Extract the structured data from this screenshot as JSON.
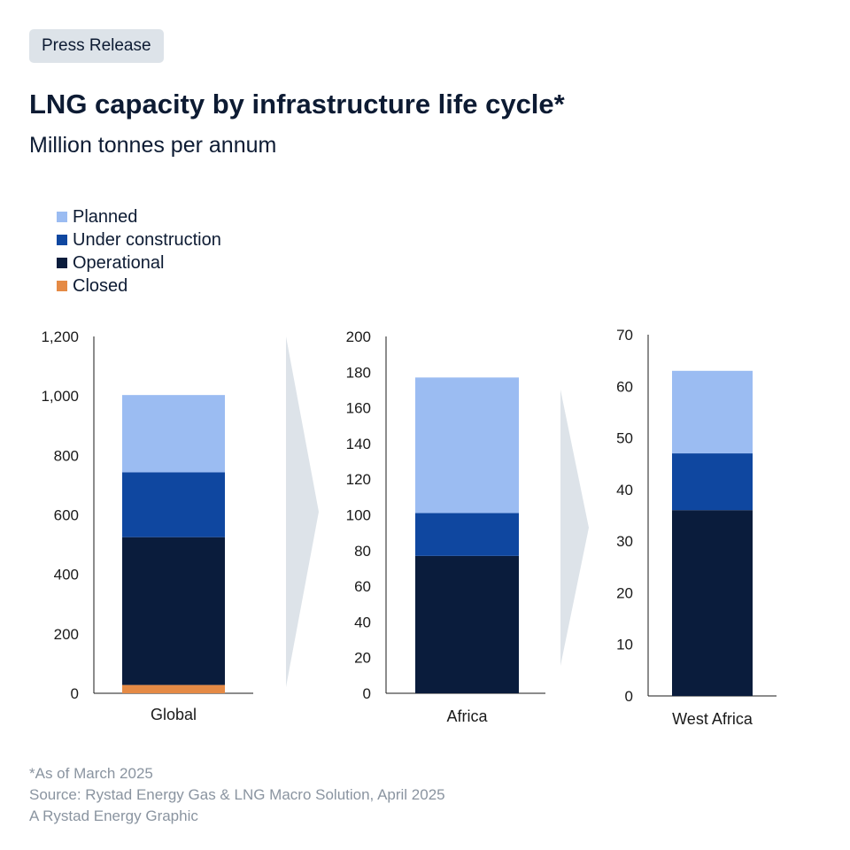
{
  "badge": "Press Release",
  "title": "LNG capacity by infrastructure life cycle*",
  "subtitle": "Million tonnes per annum",
  "legend": [
    {
      "label": "Planned",
      "color": "#9bbcf2"
    },
    {
      "label": "Under construction",
      "color": "#0f47a0"
    },
    {
      "label": "Operational",
      "color": "#0a1c3c"
    },
    {
      "label": "Closed",
      "color": "#e58a45"
    }
  ],
  "footer": {
    "note": "*As of March 2025",
    "source": "Source: Rystad Energy Gas & LNG Macro Solution, April 2025",
    "credit": "A Rystad Energy Graphic"
  },
  "chart_data": [
    {
      "type": "bar",
      "categories": [
        "Global"
      ],
      "series": [
        {
          "name": "Closed",
          "values": [
            28
          ]
        },
        {
          "name": "Operational",
          "values": [
            497
          ]
        },
        {
          "name": "Under construction",
          "values": [
            218
          ]
        },
        {
          "name": "Planned",
          "values": [
            260
          ]
        }
      ],
      "ylim": [
        0,
        1200
      ],
      "yticks": [
        "0",
        "200",
        "400",
        "600",
        "800",
        "1,000",
        "1,200"
      ]
    },
    {
      "type": "bar",
      "categories": [
        "Africa"
      ],
      "series": [
        {
          "name": "Closed",
          "values": [
            0
          ]
        },
        {
          "name": "Operational",
          "values": [
            77
          ]
        },
        {
          "name": "Under construction",
          "values": [
            24
          ]
        },
        {
          "name": "Planned",
          "values": [
            76
          ]
        }
      ],
      "ylim": [
        0,
        200
      ],
      "yticks": [
        "0",
        "20",
        "40",
        "60",
        "80",
        "100",
        "120",
        "140",
        "160",
        "180",
        "200"
      ]
    },
    {
      "type": "bar",
      "categories": [
        "West Africa"
      ],
      "series": [
        {
          "name": "Closed",
          "values": [
            0
          ]
        },
        {
          "name": "Operational",
          "values": [
            36
          ]
        },
        {
          "name": "Under construction",
          "values": [
            11
          ]
        },
        {
          "name": "Planned",
          "values": [
            16
          ]
        }
      ],
      "ylim": [
        0,
        70
      ],
      "yticks": [
        "0",
        "10",
        "20",
        "30",
        "40",
        "50",
        "60",
        "70"
      ]
    }
  ]
}
